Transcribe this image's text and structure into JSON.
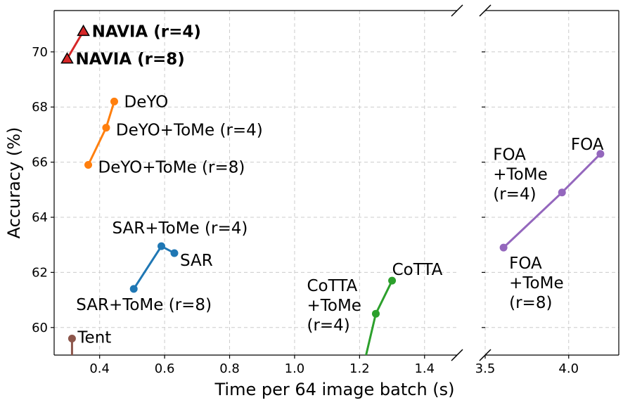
{
  "chart_data": {
    "type": "line",
    "xlabel": "Time per 64 image batch (s)",
    "ylabel": "Accuracy (%)",
    "broken_x_axis": true,
    "left_xlim": [
      0.26,
      1.5
    ],
    "right_xlim": [
      3.5,
      4.3
    ],
    "ylim": [
      59.0,
      71.5
    ],
    "left_xticks": [
      "0.4",
      "0.6",
      "0.8",
      "1.0",
      "1.2",
      "1.4"
    ],
    "right_xticks": [
      "3.5",
      "4.0"
    ],
    "yticks": [
      "60",
      "62",
      "64",
      "66",
      "68",
      "70"
    ],
    "grid": true,
    "series": [
      {
        "name": "NAVIA",
        "color": "#d62728",
        "marker": "triangle",
        "panel": "left",
        "x": [
          0.35,
          0.3
        ],
        "y": [
          70.75,
          69.75
        ],
        "labels": [
          "NAVIA (r=4)",
          "NAVIA (r=8)"
        ]
      },
      {
        "name": "DeYO",
        "color": "#ff7f0e",
        "marker": "circle",
        "panel": "left",
        "x": [
          0.445,
          0.42,
          0.365
        ],
        "y": [
          68.2,
          67.25,
          65.9
        ],
        "labels": [
          "DeYO",
          "DeYO+ToMe (r=4)",
          "DeYO+ToMe (r=8)"
        ]
      },
      {
        "name": "SAR",
        "color": "#1f77b4",
        "marker": "circle",
        "panel": "left",
        "x": [
          0.63,
          0.59,
          0.505
        ],
        "y": [
          62.7,
          62.95,
          61.4
        ],
        "labels": [
          "SAR",
          "SAR+ToMe (r=4)",
          "SAR+ToMe (r=8)"
        ]
      },
      {
        "name": "CoTTA",
        "color": "#2ca02c",
        "marker": "circle",
        "panel": "left",
        "x": [
          1.3,
          1.25,
          1.22
        ],
        "y": [
          61.7,
          60.5,
          59.0
        ],
        "labels": [
          "CoTTA",
          "CoTTA\n+ToMe\n(r=4)",
          ""
        ]
      },
      {
        "name": "Tent",
        "color": "#8c564b",
        "marker": "circle",
        "panel": "left",
        "x": [
          0.315,
          0.315
        ],
        "y": [
          59.6,
          59.0
        ],
        "labels": [
          "Tent",
          ""
        ]
      },
      {
        "name": "FOA",
        "color": "#9467bd",
        "marker": "circle",
        "panel": "right",
        "x": [
          4.19,
          3.96,
          3.61
        ],
        "y": [
          66.3,
          64.9,
          62.9
        ],
        "labels": [
          "FOA",
          "FOA\n+ToMe\n(r=4)",
          "FOA\n+ToMe\n(r=8)"
        ]
      }
    ]
  }
}
